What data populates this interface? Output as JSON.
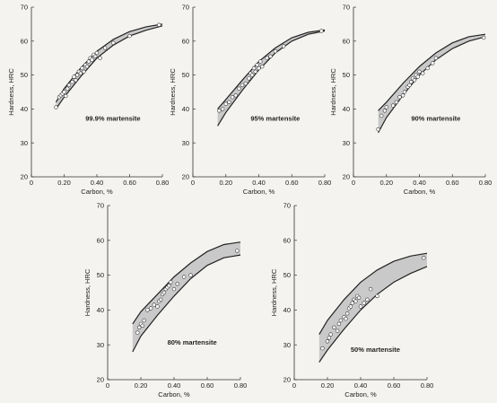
{
  "chart_data": [
    {
      "type": "scatter",
      "annotation": "99.9% martensite",
      "xlabel": "Carbon, %",
      "ylabel": "Hardness, HRC",
      "xlim": [
        0,
        0.8
      ],
      "ylim": [
        20,
        70
      ],
      "xticks": [
        "0",
        "0.20",
        "0.40",
        "0.60",
        "0.80"
      ],
      "yticks": [
        "20",
        "30",
        "40",
        "50",
        "60",
        "70"
      ],
      "upper_band": [
        [
          0.15,
          42
        ],
        [
          0.2,
          46
        ],
        [
          0.3,
          52
        ],
        [
          0.4,
          57
        ],
        [
          0.5,
          60.5
        ],
        [
          0.6,
          62.8
        ],
        [
          0.7,
          64.2
        ],
        [
          0.8,
          65
        ]
      ],
      "lower_band": [
        [
          0.15,
          40
        ],
        [
          0.2,
          43.5
        ],
        [
          0.3,
          49.5
        ],
        [
          0.4,
          55
        ],
        [
          0.5,
          58.8
        ],
        [
          0.6,
          61.5
        ],
        [
          0.7,
          63.2
        ],
        [
          0.8,
          64.5
        ]
      ],
      "points": [
        [
          0.15,
          40.5
        ],
        [
          0.17,
          43.5
        ],
        [
          0.18,
          44
        ],
        [
          0.19,
          44.5
        ],
        [
          0.2,
          45
        ],
        [
          0.21,
          43.8
        ],
        [
          0.22,
          46
        ],
        [
          0.23,
          47
        ],
        [
          0.25,
          48
        ],
        [
          0.26,
          49.5
        ],
        [
          0.27,
          48.5
        ],
        [
          0.28,
          50
        ],
        [
          0.29,
          51
        ],
        [
          0.3,
          50.5
        ],
        [
          0.31,
          52
        ],
        [
          0.32,
          51
        ],
        [
          0.33,
          53
        ],
        [
          0.34,
          52.5
        ],
        [
          0.35,
          54
        ],
        [
          0.36,
          55
        ],
        [
          0.37,
          54.5
        ],
        [
          0.38,
          56
        ],
        [
          0.39,
          55.5
        ],
        [
          0.4,
          56.5
        ],
        [
          0.42,
          55
        ],
        [
          0.45,
          58
        ],
        [
          0.5,
          59.5
        ],
        [
          0.6,
          61.5
        ],
        [
          0.78,
          64.8
        ]
      ]
    },
    {
      "type": "scatter",
      "annotation": "95% martensite",
      "xlabel": "Carbon, %",
      "ylabel": "Hardness, HRC",
      "xlim": [
        0,
        0.8
      ],
      "ylim": [
        20,
        70
      ],
      "xticks": [
        "0",
        "0.20",
        "0.40",
        "0.60",
        "0.80"
      ],
      "yticks": [
        "20",
        "30",
        "40",
        "50",
        "60",
        "70"
      ],
      "upper_band": [
        [
          0.15,
          40
        ],
        [
          0.2,
          42.8
        ],
        [
          0.3,
          48.5
        ],
        [
          0.4,
          54
        ],
        [
          0.5,
          58
        ],
        [
          0.6,
          61
        ],
        [
          0.7,
          62.6
        ],
        [
          0.8,
          63.3
        ]
      ],
      "lower_band": [
        [
          0.15,
          35
        ],
        [
          0.2,
          39
        ],
        [
          0.3,
          45.5
        ],
        [
          0.4,
          51.5
        ],
        [
          0.5,
          56.5
        ],
        [
          0.6,
          60
        ],
        [
          0.7,
          62
        ],
        [
          0.8,
          63
        ]
      ],
      "points": [
        [
          0.16,
          39.5
        ],
        [
          0.18,
          40
        ],
        [
          0.2,
          41.5
        ],
        [
          0.22,
          42
        ],
        [
          0.24,
          43.5
        ],
        [
          0.26,
          44
        ],
        [
          0.28,
          46
        ],
        [
          0.3,
          47
        ],
        [
          0.32,
          47.5
        ],
        [
          0.34,
          49
        ],
        [
          0.35,
          50.5
        ],
        [
          0.36,
          50
        ],
        [
          0.37,
          52
        ],
        [
          0.38,
          51
        ],
        [
          0.39,
          53
        ],
        [
          0.4,
          52
        ],
        [
          0.41,
          54
        ],
        [
          0.42,
          52.5
        ],
        [
          0.45,
          55
        ],
        [
          0.47,
          55.5
        ],
        [
          0.5,
          57
        ],
        [
          0.55,
          58.5
        ],
        [
          0.78,
          63
        ]
      ]
    },
    {
      "type": "scatter",
      "annotation": "90% martensite",
      "xlabel": "Carbon, %",
      "ylabel": "Hardness, HRC",
      "xlim": [
        0,
        0.8
      ],
      "ylim": [
        20,
        70
      ],
      "xticks": [
        "0",
        "0.20",
        "0.40",
        "0.60",
        "0.80"
      ],
      "yticks": [
        "20",
        "30",
        "40",
        "50",
        "60",
        "70"
      ],
      "upper_band": [
        [
          0.15,
          39.5
        ],
        [
          0.2,
          42
        ],
        [
          0.3,
          47.5
        ],
        [
          0.4,
          52.5
        ],
        [
          0.5,
          56.5
        ],
        [
          0.6,
          59.5
        ],
        [
          0.7,
          61.3
        ],
        [
          0.8,
          62
        ]
      ],
      "lower_band": [
        [
          0.15,
          33
        ],
        [
          0.2,
          37.5
        ],
        [
          0.3,
          44
        ],
        [
          0.4,
          50
        ],
        [
          0.5,
          54.5
        ],
        [
          0.6,
          57.8
        ],
        [
          0.7,
          60
        ],
        [
          0.8,
          61.3
        ]
      ],
      "points": [
        [
          0.15,
          34
        ],
        [
          0.17,
          38
        ],
        [
          0.19,
          39.5
        ],
        [
          0.2,
          40.5
        ],
        [
          0.24,
          41
        ],
        [
          0.26,
          42
        ],
        [
          0.28,
          43.5
        ],
        [
          0.3,
          44
        ],
        [
          0.31,
          45
        ],
        [
          0.33,
          46.5
        ],
        [
          0.34,
          47
        ],
        [
          0.35,
          48
        ],
        [
          0.36,
          49
        ],
        [
          0.37,
          48.5
        ],
        [
          0.38,
          50
        ],
        [
          0.39,
          49.5
        ],
        [
          0.4,
          51
        ],
        [
          0.42,
          50.5
        ],
        [
          0.45,
          52
        ],
        [
          0.48,
          53.5
        ],
        [
          0.5,
          55
        ],
        [
          0.79,
          61
        ]
      ]
    },
    {
      "type": "scatter",
      "annotation": "80% martensite",
      "xlabel": "Carbon, %",
      "ylabel": "Hardness, HRC",
      "xlim": [
        0,
        0.8
      ],
      "ylim": [
        20,
        70
      ],
      "xticks": [
        "0",
        "0.20",
        "0.40",
        "0.60",
        "0.80"
      ],
      "yticks": [
        "20",
        "30",
        "40",
        "50",
        "60",
        "70"
      ],
      "upper_band": [
        [
          0.15,
          36
        ],
        [
          0.2,
          39.5
        ],
        [
          0.3,
          44.5
        ],
        [
          0.4,
          49.5
        ],
        [
          0.5,
          53.5
        ],
        [
          0.6,
          56.8
        ],
        [
          0.7,
          58.8
        ],
        [
          0.8,
          59.5
        ]
      ],
      "lower_band": [
        [
          0.15,
          28
        ],
        [
          0.2,
          32.5
        ],
        [
          0.3,
          38.5
        ],
        [
          0.4,
          44
        ],
        [
          0.5,
          49
        ],
        [
          0.6,
          52.8
        ],
        [
          0.7,
          55
        ],
        [
          0.8,
          55.8
        ]
      ],
      "points": [
        [
          0.18,
          33.5
        ],
        [
          0.19,
          35
        ],
        [
          0.2,
          36
        ],
        [
          0.21,
          35.5
        ],
        [
          0.22,
          37
        ],
        [
          0.24,
          40
        ],
        [
          0.26,
          40.5
        ],
        [
          0.28,
          41.5
        ],
        [
          0.3,
          41
        ],
        [
          0.31,
          42.5
        ],
        [
          0.32,
          43
        ],
        [
          0.33,
          44.5
        ],
        [
          0.34,
          45
        ],
        [
          0.35,
          46
        ],
        [
          0.36,
          46.5
        ],
        [
          0.37,
          47
        ],
        [
          0.38,
          48
        ],
        [
          0.4,
          46
        ],
        [
          0.42,
          47.5
        ],
        [
          0.46,
          49.5
        ],
        [
          0.5,
          50
        ],
        [
          0.78,
          57
        ]
      ]
    },
    {
      "type": "scatter",
      "annotation": "50% martensite",
      "xlabel": "Carbon, %",
      "ylabel": "Hardness, HRC",
      "xlim": [
        0,
        0.8
      ],
      "ylim": [
        20,
        70
      ],
      "xticks": [
        "0",
        "0.20",
        "0.40",
        "0.60",
        "0.80"
      ],
      "yticks": [
        "20",
        "30",
        "40",
        "50",
        "60",
        "70"
      ],
      "upper_band": [
        [
          0.15,
          33
        ],
        [
          0.2,
          37
        ],
        [
          0.3,
          43
        ],
        [
          0.4,
          48
        ],
        [
          0.5,
          51.5
        ],
        [
          0.6,
          54
        ],
        [
          0.7,
          55.5
        ],
        [
          0.8,
          56.3
        ]
      ],
      "lower_band": [
        [
          0.15,
          25
        ],
        [
          0.2,
          28.5
        ],
        [
          0.3,
          34.5
        ],
        [
          0.4,
          40
        ],
        [
          0.5,
          44.5
        ],
        [
          0.6,
          48
        ],
        [
          0.7,
          50.5
        ],
        [
          0.8,
          52.5
        ]
      ],
      "points": [
        [
          0.17,
          29
        ],
        [
          0.2,
          31
        ],
        [
          0.21,
          32
        ],
        [
          0.22,
          33
        ],
        [
          0.24,
          35
        ],
        [
          0.26,
          34
        ],
        [
          0.27,
          36
        ],
        [
          0.28,
          37
        ],
        [
          0.3,
          38
        ],
        [
          0.31,
          37.5
        ],
        [
          0.32,
          39
        ],
        [
          0.33,
          40.5
        ],
        [
          0.34,
          41
        ],
        [
          0.35,
          42
        ],
        [
          0.36,
          43
        ],
        [
          0.37,
          42.5
        ],
        [
          0.38,
          44
        ],
        [
          0.39,
          43.5
        ],
        [
          0.4,
          41
        ],
        [
          0.42,
          42
        ],
        [
          0.44,
          43
        ],
        [
          0.46,
          46
        ],
        [
          0.5,
          44
        ],
        [
          0.78,
          55
        ]
      ]
    }
  ]
}
